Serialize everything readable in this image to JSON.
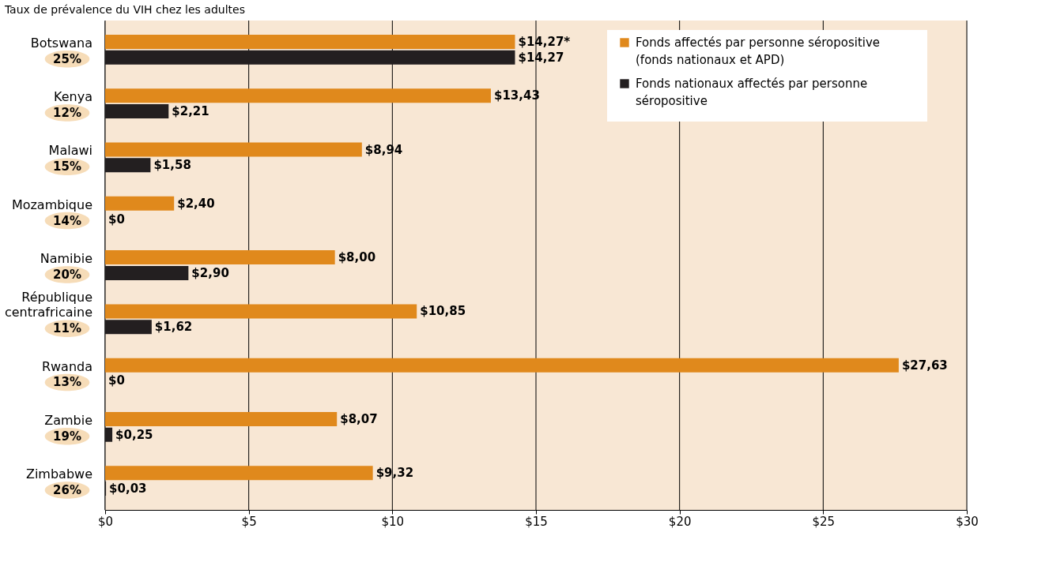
{
  "chart_data": {
    "type": "bar",
    "orientation": "horizontal",
    "ylabel": "Taux de prévalence du VIH chez les adultes",
    "categories": [
      "Botswana",
      "Kenya",
      "Malawi",
      "Mozambique",
      "Namibie",
      "République centrafricaine",
      "Rwanda",
      "Zambie",
      "Zimbabwe"
    ],
    "annotations": [
      "25%",
      "12%",
      "15%",
      "14%",
      "20%",
      "11%",
      "13%",
      "19%",
      "26%"
    ],
    "series": [
      {
        "name": "Fonds affectés par personne séropositive (fonds nationaux et APD)",
        "color": "#e0891c",
        "values": [
          14.27,
          13.43,
          8.94,
          2.4,
          8.0,
          10.85,
          27.63,
          8.07,
          9.32
        ],
        "value_labels": [
          "$14,27*",
          "$13,43",
          "$8,94",
          "$2,40",
          "$8,00",
          "$10,85",
          "$27,63",
          "$8,07",
          "$9,32"
        ]
      },
      {
        "name": "Fonds nationaux affectés par personne séropositive",
        "color": "#231f20",
        "values": [
          14.27,
          2.21,
          1.58,
          0,
          2.9,
          1.62,
          0,
          0.25,
          0.03
        ],
        "value_labels": [
          "$14,27",
          "$2,21",
          "$1,58",
          "$0",
          "$2,90",
          "$1,62",
          "$0",
          "$0,25",
          "$0,03"
        ]
      }
    ],
    "xlim": [
      0,
      30
    ],
    "xticks": [
      {
        "value": 0,
        "label": "$0"
      },
      {
        "value": 5,
        "label": "$5"
      },
      {
        "value": 10,
        "label": "$10"
      },
      {
        "value": 15,
        "label": "$15"
      },
      {
        "value": 20,
        "label": "$20"
      },
      {
        "value": 25,
        "label": "$25"
      },
      {
        "value": 30,
        "label": "$30"
      }
    ],
    "grid": "x",
    "legend": "top right"
  }
}
